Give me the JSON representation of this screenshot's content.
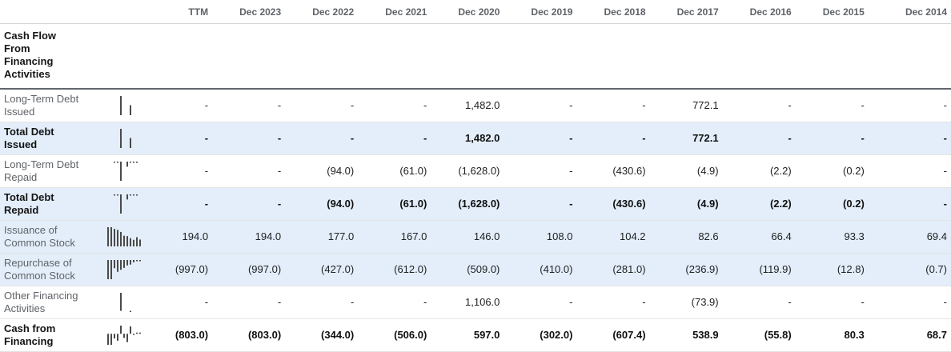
{
  "table": {
    "section_title": "Cash Flow From Financing Activities",
    "columns": [
      "TTM",
      "Dec 2023",
      "Dec 2022",
      "Dec 2021",
      "Dec 2020",
      "Dec 2019",
      "Dec 2018",
      "Dec 2017",
      "Dec 2016",
      "Dec 2015",
      "Dec 2014"
    ],
    "rows": [
      {
        "label": "Long-Term Debt Issued",
        "bold": false,
        "highlight": false,
        "values": [
          "-",
          "-",
          "-",
          "-",
          "1,482.0",
          "-",
          "-",
          "772.1",
          "-",
          "-",
          "-"
        ]
      },
      {
        "label": "Total Debt Issued",
        "bold": true,
        "highlight": true,
        "values": [
          "-",
          "-",
          "-",
          "-",
          "1,482.0",
          "-",
          "-",
          "772.1",
          "-",
          "-",
          "-"
        ]
      },
      {
        "label": "Long-Term Debt Repaid",
        "bold": false,
        "highlight": false,
        "values": [
          "-",
          "-",
          "(94.0)",
          "(61.0)",
          "(1,628.0)",
          "-",
          "(430.6)",
          "(4.9)",
          "(2.2)",
          "(0.2)",
          "-"
        ]
      },
      {
        "label": "Total Debt Repaid",
        "bold": true,
        "highlight": true,
        "values": [
          "-",
          "-",
          "(94.0)",
          "(61.0)",
          "(1,628.0)",
          "-",
          "(430.6)",
          "(4.9)",
          "(2.2)",
          "(0.2)",
          "-"
        ]
      },
      {
        "label": "Issuance of Common Stock",
        "bold": false,
        "highlight": true,
        "values": [
          "194.0",
          "194.0",
          "177.0",
          "167.0",
          "146.0",
          "108.0",
          "104.2",
          "82.6",
          "66.4",
          "93.3",
          "69.4"
        ]
      },
      {
        "label": "Repurchase of Common Stock",
        "bold": false,
        "highlight": true,
        "values": [
          "(997.0)",
          "(997.0)",
          "(427.0)",
          "(612.0)",
          "(509.0)",
          "(410.0)",
          "(281.0)",
          "(236.9)",
          "(119.9)",
          "(12.8)",
          "(0.7)"
        ]
      },
      {
        "label": "Other Financing Activities",
        "bold": false,
        "highlight": false,
        "values": [
          "-",
          "-",
          "-",
          "-",
          "1,106.0",
          "-",
          "-",
          "(73.9)",
          "-",
          "-",
          "-"
        ]
      },
      {
        "label": "Cash from Financing",
        "bold": true,
        "highlight": false,
        "values": [
          "(803.0)",
          "(803.0)",
          "(344.0)",
          "(506.0)",
          "597.0",
          "(302.0)",
          "(607.4)",
          "538.9",
          "(55.8)",
          "80.3",
          "68.7"
        ]
      }
    ]
  },
  "colors": {
    "highlight_row_bg": "#e3eefa",
    "spark_bar": "#4a4a4a",
    "header_text": "#5f6368",
    "label_text": "#5f6368",
    "value_text": "#202124",
    "section_underline": "#62676d"
  }
}
